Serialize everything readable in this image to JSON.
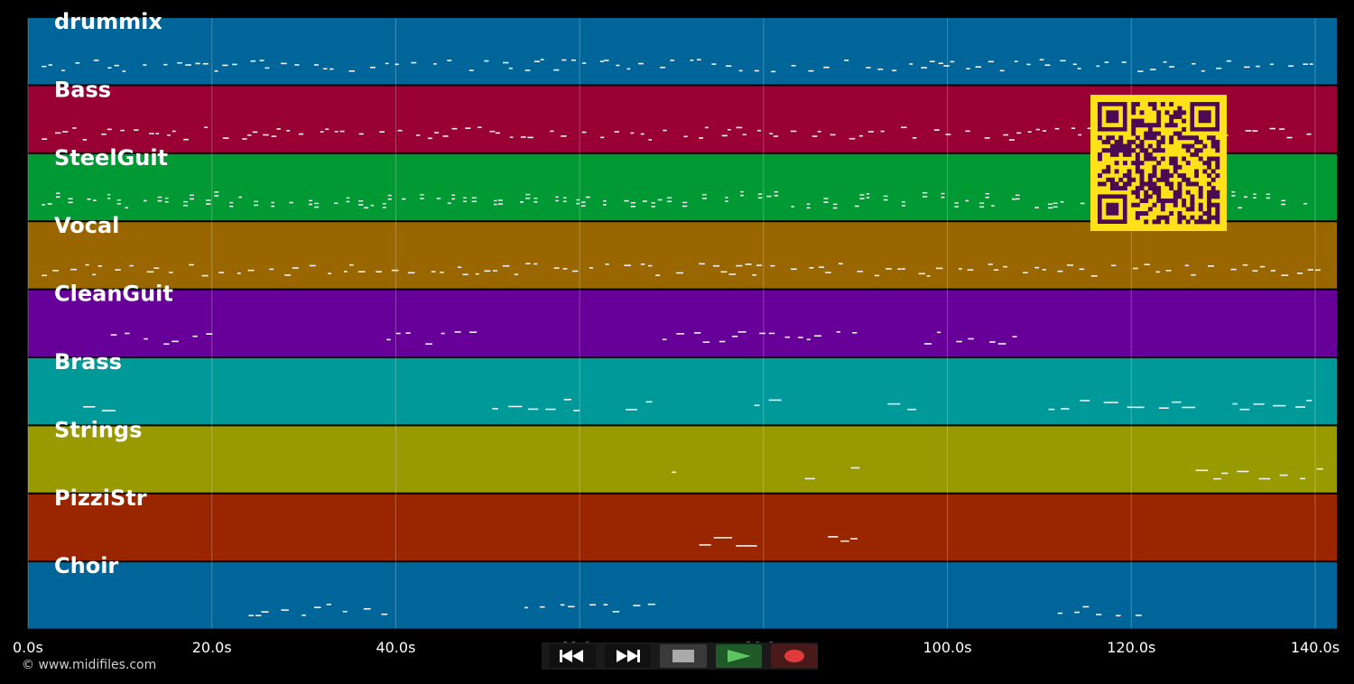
{
  "timeline": {
    "axis_unit": "s",
    "x_max": 142,
    "ticks": [
      {
        "value": 0,
        "label": "0.0s"
      },
      {
        "value": 20,
        "label": "20.0s"
      },
      {
        "value": 40,
        "label": "40.0s"
      },
      {
        "value": 60,
        "label": "60.0s"
      },
      {
        "value": 80,
        "label": "80.0s"
      },
      {
        "value": 100,
        "label": "100.0s"
      },
      {
        "value": 120,
        "label": "120.0s"
      },
      {
        "value": 140,
        "label": "140.0s"
      }
    ]
  },
  "tracks": [
    {
      "name": "drummix",
      "color": "#006699"
    },
    {
      "name": "Bass",
      "color": "#990033"
    },
    {
      "name": "SteelGuit",
      "color": "#009933"
    },
    {
      "name": "Vocal",
      "color": "#996600"
    },
    {
      "name": "CleanGuit",
      "color": "#660099"
    },
    {
      "name": "Brass",
      "color": "#009999"
    },
    {
      "name": "Strings",
      "color": "#999900"
    },
    {
      "name": "PizziStr",
      "color": "#992600"
    },
    {
      "name": "Choir",
      "color": "#006699"
    }
  ],
  "copyright": "© www.midifiles.com",
  "transport": {
    "rewind": "rewind-icon",
    "fast_forward": "fast-forward-icon",
    "stop": "stop-icon",
    "play": "play-icon",
    "record": "record-icon"
  },
  "qr": {
    "fg": "#4b0a52",
    "bg": "#ffe11a"
  }
}
